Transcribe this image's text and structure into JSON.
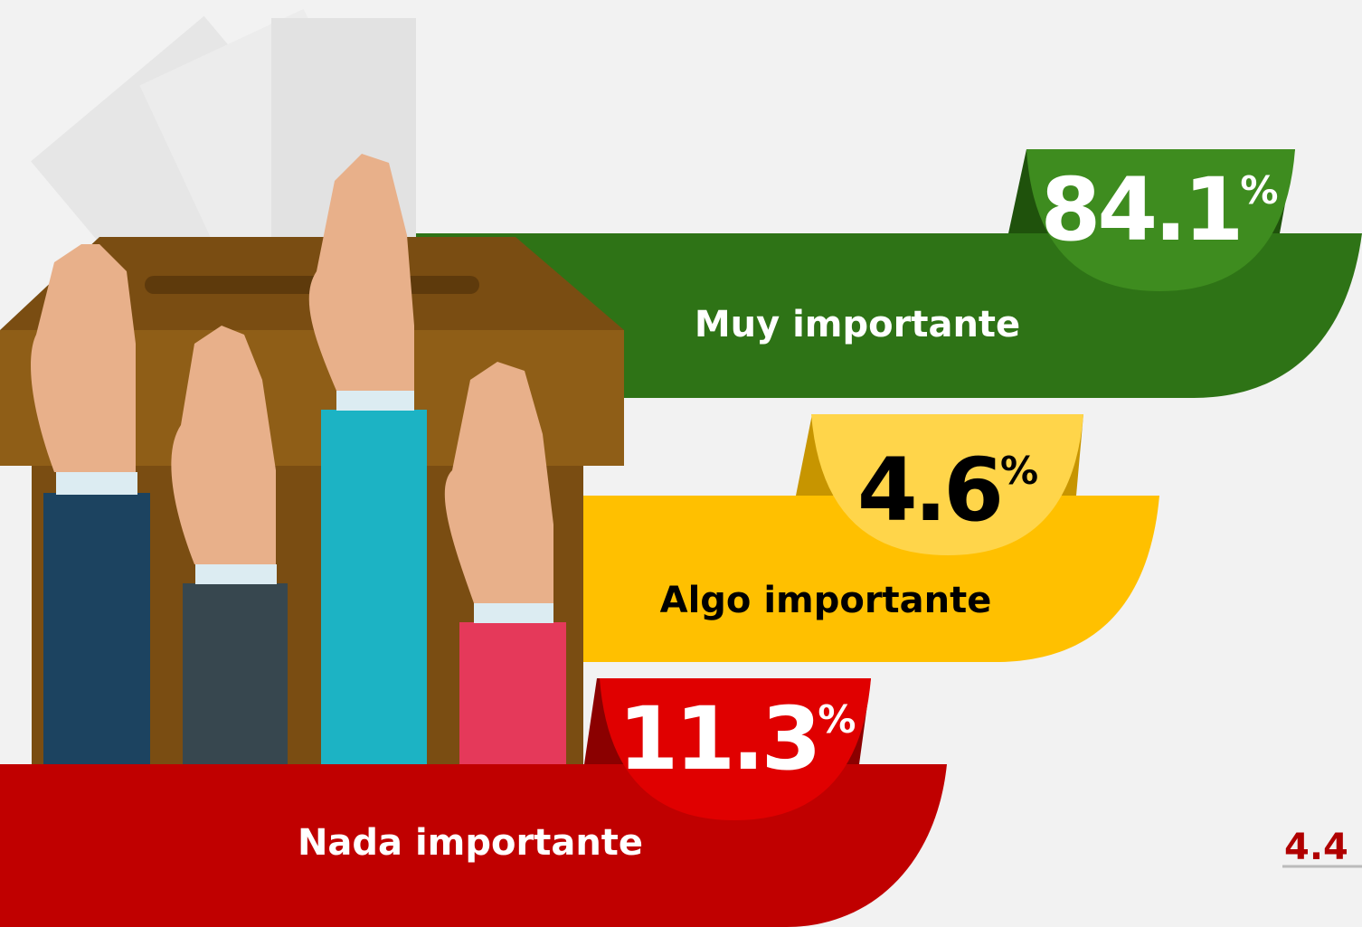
{
  "items": [
    {
      "label": "Muy importante",
      "value": 84.1,
      "unit": "%"
    },
    {
      "label": "Algo importante",
      "value": 4.6,
      "unit": "%"
    },
    {
      "label": "Nada importante",
      "value": 11.3,
      "unit": "%"
    }
  ],
  "footer_number": 4.4
}
